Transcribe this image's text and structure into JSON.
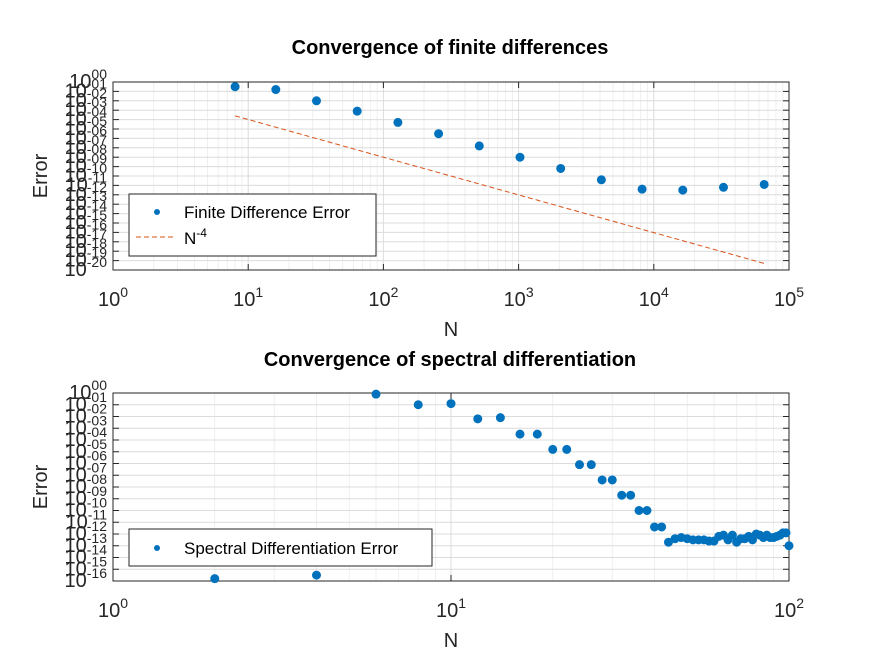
{
  "chart_data": [
    {
      "type": "scatter",
      "title": "Convergence of finite differences",
      "xlabel": "N",
      "ylabel": "Error",
      "xscale": "log",
      "yscale": "log",
      "xlim": [
        1,
        100000
      ],
      "ylim_exponent": [
        -20,
        0
      ],
      "x_tick_labels": [
        "10^0",
        "10^1",
        "10^2",
        "10^3",
        "10^4",
        "10^5"
      ],
      "y_tick_labels": [
        "10^-20",
        "10^-19",
        "10^-18",
        "10^-17",
        "10^-16",
        "10^-15",
        "10^-14",
        "10^-13",
        "10^-12",
        "10^-11",
        "10^-10",
        "10^-09",
        "10^-08",
        "10^-07",
        "10^-06",
        "10^-05",
        "10^-04",
        "10^-03",
        "10^-02",
        "10^-01",
        "10^00"
      ],
      "grid": true,
      "legend_position": "lower-left",
      "series": [
        {
          "name": "Finite Difference Error",
          "style": "markers",
          "color": "#0072BD",
          "points": [
            {
              "x": 8,
              "y_exp": -0.5
            },
            {
              "x": 16,
              "y_exp": -0.8
            },
            {
              "x": 32,
              "y_exp": -2.0
            },
            {
              "x": 64,
              "y_exp": -3.1
            },
            {
              "x": 128,
              "y_exp": -4.3
            },
            {
              "x": 256,
              "y_exp": -5.5
            },
            {
              "x": 512,
              "y_exp": -6.8
            },
            {
              "x": 1024,
              "y_exp": -8.0
            },
            {
              "x": 2048,
              "y_exp": -9.2
            },
            {
              "x": 4096,
              "y_exp": -10.4
            },
            {
              "x": 8192,
              "y_exp": -11.4
            },
            {
              "x": 16384,
              "y_exp": -11.5
            },
            {
              "x": 32768,
              "y_exp": -11.2
            },
            {
              "x": 65536,
              "y_exp": -10.9
            }
          ]
        },
        {
          "name": "N^-4",
          "label_base": "N",
          "label_sup": "-4",
          "style": "dashed",
          "color": "#D95319",
          "points": [
            {
              "x": 8,
              "y_exp": -3.6
            },
            {
              "x": 65536,
              "y_exp": -19.3
            }
          ]
        }
      ]
    },
    {
      "type": "scatter",
      "title": "Convergence of spectral differentiation",
      "xlabel": "N",
      "ylabel": "Error",
      "xscale": "log",
      "yscale": "log",
      "xlim": [
        1,
        100
      ],
      "ylim_exponent": [
        -16,
        0
      ],
      "x_tick_labels": [
        "10^0",
        "10^1",
        "10^2"
      ],
      "y_tick_labels": [
        "10^-16",
        "10^-15",
        "10^-14",
        "10^-13",
        "10^-12",
        "10^-11",
        "10^-10",
        "10^-09",
        "10^-08",
        "10^-07",
        "10^-06",
        "10^-05",
        "10^-04",
        "10^-03",
        "10^-02",
        "10^-01",
        "10^00"
      ],
      "grid": true,
      "legend_position": "lower-left",
      "series": [
        {
          "name": "Spectral Differentiation Error",
          "style": "markers",
          "color": "#0072BD",
          "points": [
            {
              "x": 2,
              "y_exp": -15.8
            },
            {
              "x": 4,
              "y_exp": -15.5
            },
            {
              "x": 6,
              "y_exp": -0.1
            },
            {
              "x": 8,
              "y_exp": -1.0
            },
            {
              "x": 10,
              "y_exp": -0.9
            },
            {
              "x": 12,
              "y_exp": -2.2
            },
            {
              "x": 14,
              "y_exp": -2.1
            },
            {
              "x": 16,
              "y_exp": -3.5
            },
            {
              "x": 18,
              "y_exp": -3.5
            },
            {
              "x": 20,
              "y_exp": -4.8
            },
            {
              "x": 22,
              "y_exp": -4.8
            },
            {
              "x": 24,
              "y_exp": -6.1
            },
            {
              "x": 26,
              "y_exp": -6.1
            },
            {
              "x": 28,
              "y_exp": -7.4
            },
            {
              "x": 30,
              "y_exp": -7.4
            },
            {
              "x": 32,
              "y_exp": -8.7
            },
            {
              "x": 34,
              "y_exp": -8.7
            },
            {
              "x": 36,
              "y_exp": -10.0
            },
            {
              "x": 38,
              "y_exp": -10.0
            },
            {
              "x": 40,
              "y_exp": -11.4
            },
            {
              "x": 42,
              "y_exp": -11.4
            },
            {
              "x": 44,
              "y_exp": -12.7
            },
            {
              "x": 46,
              "y_exp": -12.4
            },
            {
              "x": 48,
              "y_exp": -12.3
            },
            {
              "x": 50,
              "y_exp": -12.4
            },
            {
              "x": 52,
              "y_exp": -12.5
            },
            {
              "x": 54,
              "y_exp": -12.5
            },
            {
              "x": 56,
              "y_exp": -12.5
            },
            {
              "x": 58,
              "y_exp": -12.6
            },
            {
              "x": 60,
              "y_exp": -12.6
            },
            {
              "x": 62,
              "y_exp": -12.2
            },
            {
              "x": 64,
              "y_exp": -12.1
            },
            {
              "x": 66,
              "y_exp": -12.5
            },
            {
              "x": 68,
              "y_exp": -12.1
            },
            {
              "x": 70,
              "y_exp": -12.7
            },
            {
              "x": 72,
              "y_exp": -12.4
            },
            {
              "x": 74,
              "y_exp": -12.4
            },
            {
              "x": 76,
              "y_exp": -12.2
            },
            {
              "x": 78,
              "y_exp": -12.5
            },
            {
              "x": 80,
              "y_exp": -12.0
            },
            {
              "x": 82,
              "y_exp": -12.1
            },
            {
              "x": 84,
              "y_exp": -12.3
            },
            {
              "x": 86,
              "y_exp": -12.1
            },
            {
              "x": 88,
              "y_exp": -12.3
            },
            {
              "x": 90,
              "y_exp": -12.3
            },
            {
              "x": 92,
              "y_exp": -12.2
            },
            {
              "x": 94,
              "y_exp": -12.1
            },
            {
              "x": 96,
              "y_exp": -11.9
            },
            {
              "x": 98,
              "y_exp": -11.9
            },
            {
              "x": 100,
              "y_exp": -13.0
            }
          ]
        }
      ]
    }
  ]
}
